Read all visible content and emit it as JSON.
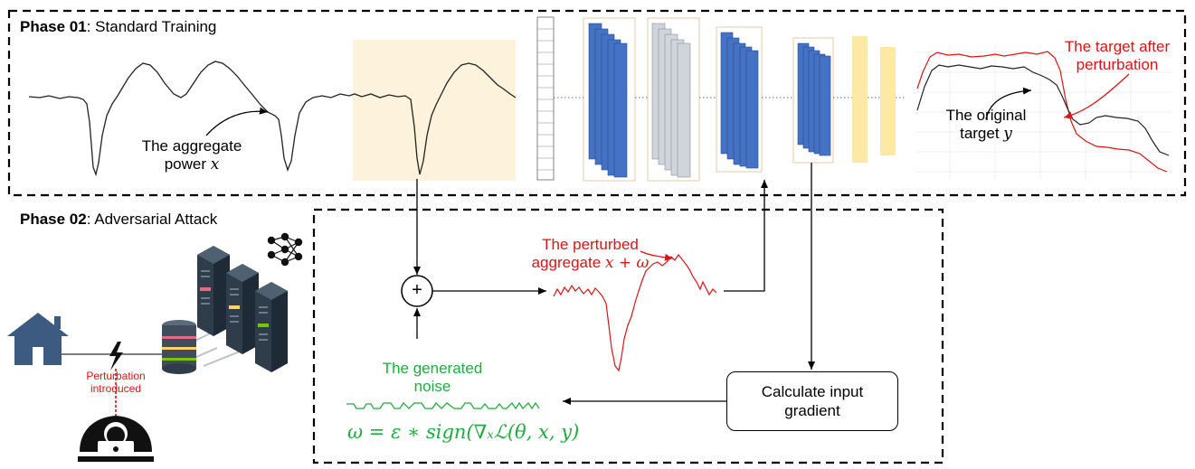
{
  "phase1": {
    "number": "Phase 01",
    "name": ": Standard Training"
  },
  "phase2": {
    "number": "Phase 02",
    "name": ": Adversarial Attack"
  },
  "aggregate_label": {
    "line1": "The aggregate",
    "line2": "power ",
    "var": "x"
  },
  "original_target": {
    "line1": "The original",
    "line2": "target ",
    "var": "y"
  },
  "target_after": {
    "line1": "The target after",
    "line2": "perturbation"
  },
  "perturbed": {
    "line1": "The perturbed",
    "line2": "aggregate ",
    "math": "x + ω"
  },
  "noise": {
    "line1": "The generated",
    "line2": "noise"
  },
  "formula": "ω = ε ∗ sign(∇ₓℒ(θ, x, y)",
  "calc": {
    "line1": "Calculate input",
    "line2": "gradient"
  },
  "perturbation_intro": {
    "line1": "Perturbation",
    "line2": "introduced"
  },
  "sum_symbol": "+",
  "colors": {
    "red": "#e01414",
    "green": "#1fae3e",
    "blue": "#4472c4",
    "gray": "#d0d5db",
    "yellow": "#fde9a6",
    "highlight": "#fdf3dc",
    "orange_border": "#e8c9a8",
    "house": "#3d5a80",
    "server": "#2f3c4a"
  },
  "icons": [
    "house-icon",
    "lightning-icon",
    "hacker-icon",
    "server-icon",
    "neural-network-icon"
  ]
}
